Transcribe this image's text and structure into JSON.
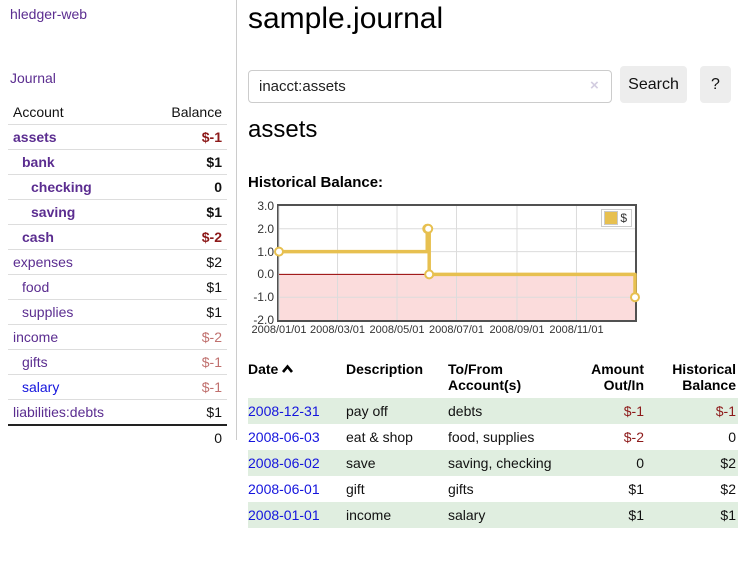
{
  "app": {
    "title": "hledger-web"
  },
  "nav": {
    "journal_label": "Journal"
  },
  "sidebar": {
    "headers": {
      "account": "Account",
      "balance": "Balance"
    },
    "accounts": [
      {
        "name": "assets",
        "balance": "$-1",
        "level": 1,
        "bold": true,
        "neg": "dark"
      },
      {
        "name": "bank",
        "balance": "$1",
        "level": 2,
        "bold": true,
        "neg": ""
      },
      {
        "name": "checking",
        "balance": "0",
        "level": 3,
        "bold": true,
        "neg": ""
      },
      {
        "name": "saving",
        "balance": "$1",
        "level": 3,
        "bold": true,
        "neg": ""
      },
      {
        "name": "cash",
        "balance": "$-2",
        "level": 2,
        "bold": true,
        "neg": "dark"
      },
      {
        "name": "expenses",
        "balance": "$2",
        "level": 1,
        "bold": false,
        "neg": ""
      },
      {
        "name": "food",
        "balance": "$1",
        "level": 2,
        "bold": false,
        "neg": ""
      },
      {
        "name": "supplies",
        "balance": "$1",
        "level": 2,
        "bold": false,
        "neg": ""
      },
      {
        "name": "income",
        "balance": "$-2",
        "level": 1,
        "bold": false,
        "neg": "light"
      },
      {
        "name": "gifts",
        "balance": "$-1",
        "level": 2,
        "bold": false,
        "neg": "light"
      },
      {
        "name": "salary",
        "balance": "$-1",
        "level": 2,
        "bold": false,
        "neg": "light",
        "link": "blue"
      },
      {
        "name": "liabilities:debts",
        "balance": "$1",
        "level": 1,
        "bold": false,
        "neg": ""
      }
    ],
    "total": "0"
  },
  "main": {
    "title": "sample.journal",
    "search": {
      "value": "inacct:assets",
      "clear_icon": "×",
      "button_label": "Search",
      "help_label": "?"
    },
    "account_heading": "assets",
    "chart_heading": "Historical Balance:"
  },
  "chart_data": {
    "type": "line",
    "step": true,
    "title": "Historical Balance:",
    "series": [
      {
        "name": "$",
        "color": "#e7c050",
        "points": [
          [
            "2008-01-01",
            1
          ],
          [
            "2008-06-01",
            2
          ],
          [
            "2008-06-02",
            2
          ],
          [
            "2008-06-03",
            0
          ],
          [
            "2008-12-31",
            -1
          ]
        ]
      }
    ],
    "xlim": [
      "2008-01-01",
      "2008-12-31"
    ],
    "ylim": [
      -2,
      3
    ],
    "x_ticks": [
      "2008/01/01",
      "2008/03/01",
      "2008/05/01",
      "2008/07/01",
      "2008/09/01",
      "2008/11/01"
    ],
    "y_ticks": [
      "3.0",
      "2.0",
      "1.0",
      "0.0",
      "-1.0",
      "-2.0"
    ],
    "grid": true,
    "legend_position": "top-right",
    "negative_region_fill": "#fbdcdc",
    "zero_line_color": "#990000",
    "grid_color": "#dcdcdc",
    "border_color": "#515151"
  },
  "register": {
    "headers": {
      "date": "Date",
      "description": "Description",
      "accounts": "To/From Account(s)",
      "amount": "Amount Out/In",
      "balance": "Historical Balance"
    },
    "rows": [
      {
        "date": "2008-12-31",
        "description": "pay off",
        "accounts": "debts",
        "amount": "$-1",
        "balance": "$-1"
      },
      {
        "date": "2008-06-03",
        "description": "eat & shop",
        "accounts": "food, supplies",
        "amount": "$-2",
        "balance": "0"
      },
      {
        "date": "2008-06-02",
        "description": "save",
        "accounts": "saving, checking",
        "amount": "0",
        "balance": "$2"
      },
      {
        "date": "2008-06-01",
        "description": "gift",
        "accounts": "gifts",
        "amount": "$1",
        "balance": "$2"
      },
      {
        "date": "2008-01-01",
        "description": "income",
        "accounts": "salary",
        "amount": "$1",
        "balance": "$1"
      }
    ]
  }
}
